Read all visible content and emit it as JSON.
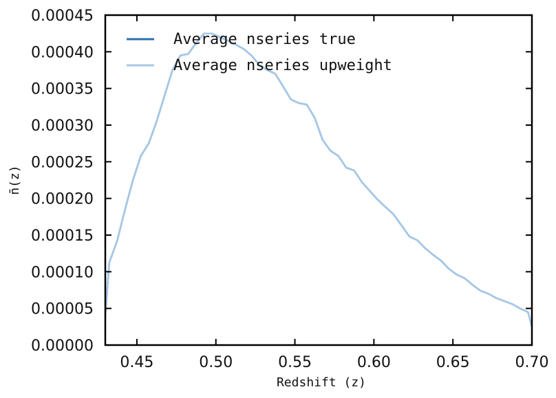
{
  "chart_data": {
    "type": "line",
    "xlabel": "Redshift (z)",
    "ylabel": "n̄(z)",
    "xlim": [
      0.43,
      0.7
    ],
    "ylim": [
      0.0,
      0.00045
    ],
    "x_ticks": [
      0.45,
      0.5,
      0.55,
      0.6,
      0.65,
      0.7
    ],
    "x_tick_labels": [
      "0.45",
      "0.50",
      "0.55",
      "0.60",
      "0.65",
      "0.70"
    ],
    "y_ticks": [
      0.0,
      5e-05,
      0.0001,
      0.00015,
      0.0002,
      0.00025,
      0.0003,
      0.00035,
      0.0004,
      0.00045
    ],
    "y_tick_labels": [
      "0.00000",
      "0.00005",
      "0.00010",
      "0.00015",
      "0.00020",
      "0.00025",
      "0.00030",
      "0.00035",
      "0.00040",
      "0.00045"
    ],
    "grid": false,
    "legend_position": "top-left",
    "series": [
      {
        "name": "Average nseries true",
        "color": "#2c6fae",
        "x": [
          0.43,
          0.4325,
          0.4375,
          0.4425,
          0.4475,
          0.4525,
          0.4575,
          0.4625,
          0.4675,
          0.4725,
          0.4775,
          0.4825,
          0.4875,
          0.4925,
          0.4975,
          0.5025,
          0.5075,
          0.5125,
          0.5175,
          0.5225,
          0.5275,
          0.5325,
          0.5375,
          0.5425,
          0.5475,
          0.5525,
          0.5575,
          0.5625,
          0.5675,
          0.5725,
          0.5775,
          0.5825,
          0.5875,
          0.5925,
          0.5975,
          0.6025,
          0.6075,
          0.6125,
          0.6175,
          0.6225,
          0.6275,
          0.6325,
          0.6375,
          0.6425,
          0.6475,
          0.6525,
          0.6575,
          0.6625,
          0.6675,
          0.6725,
          0.6775,
          0.6825,
          0.6875,
          0.6925,
          0.6975,
          0.7
        ],
        "values": [
          4e-05,
          0.000112,
          0.000142,
          0.000185,
          0.000225,
          0.000258,
          0.000275,
          0.000305,
          0.00034,
          0.000375,
          0.000395,
          0.000397,
          0.000412,
          0.000425,
          0.000425,
          0.00042,
          0.000415,
          0.00041,
          0.000404,
          0.000395,
          0.000382,
          0.000375,
          0.00037,
          0.000353,
          0.000335,
          0.00033,
          0.000328,
          0.00031,
          0.00028,
          0.000265,
          0.000258,
          0.000242,
          0.000238,
          0.000222,
          0.00021,
          0.000198,
          0.000188,
          0.000178,
          0.000163,
          0.000148,
          0.000143,
          0.000132,
          0.000123,
          0.000115,
          0.000104,
          9.6e-05,
          9.1e-05,
          8.2e-05,
          7.4e-05,
          7e-05,
          6.4e-05,
          6e-05,
          5.6e-05,
          5e-05,
          4.5e-05,
          2.5e-05
        ]
      },
      {
        "name": "Average nseries upweight",
        "color": "#a6c8e6",
        "x": [
          0.43,
          0.4325,
          0.4375,
          0.4425,
          0.4475,
          0.4525,
          0.4575,
          0.4625,
          0.4675,
          0.4725,
          0.4775,
          0.4825,
          0.4875,
          0.4925,
          0.4975,
          0.5025,
          0.5075,
          0.5125,
          0.5175,
          0.5225,
          0.5275,
          0.5325,
          0.5375,
          0.5425,
          0.5475,
          0.5525,
          0.5575,
          0.5625,
          0.5675,
          0.5725,
          0.5775,
          0.5825,
          0.5875,
          0.5925,
          0.5975,
          0.6025,
          0.6075,
          0.6125,
          0.6175,
          0.6225,
          0.6275,
          0.6325,
          0.6375,
          0.6425,
          0.6475,
          0.6525,
          0.6575,
          0.6625,
          0.6675,
          0.6725,
          0.6775,
          0.6825,
          0.6875,
          0.6925,
          0.6975,
          0.7
        ],
        "values": [
          4e-05,
          0.000112,
          0.000142,
          0.000185,
          0.000225,
          0.000258,
          0.000275,
          0.000305,
          0.00034,
          0.000375,
          0.000395,
          0.000397,
          0.000412,
          0.000425,
          0.000425,
          0.00042,
          0.000415,
          0.00041,
          0.000404,
          0.000395,
          0.000382,
          0.000375,
          0.00037,
          0.000353,
          0.000335,
          0.00033,
          0.000328,
          0.00031,
          0.00028,
          0.000265,
          0.000258,
          0.000242,
          0.000238,
          0.000222,
          0.00021,
          0.000198,
          0.000188,
          0.000178,
          0.000163,
          0.000148,
          0.000143,
          0.000132,
          0.000123,
          0.000115,
          0.000104,
          9.6e-05,
          9.1e-05,
          8.2e-05,
          7.4e-05,
          7e-05,
          6.4e-05,
          6e-05,
          5.6e-05,
          5e-05,
          4.5e-05,
          2.5e-05
        ]
      }
    ]
  }
}
